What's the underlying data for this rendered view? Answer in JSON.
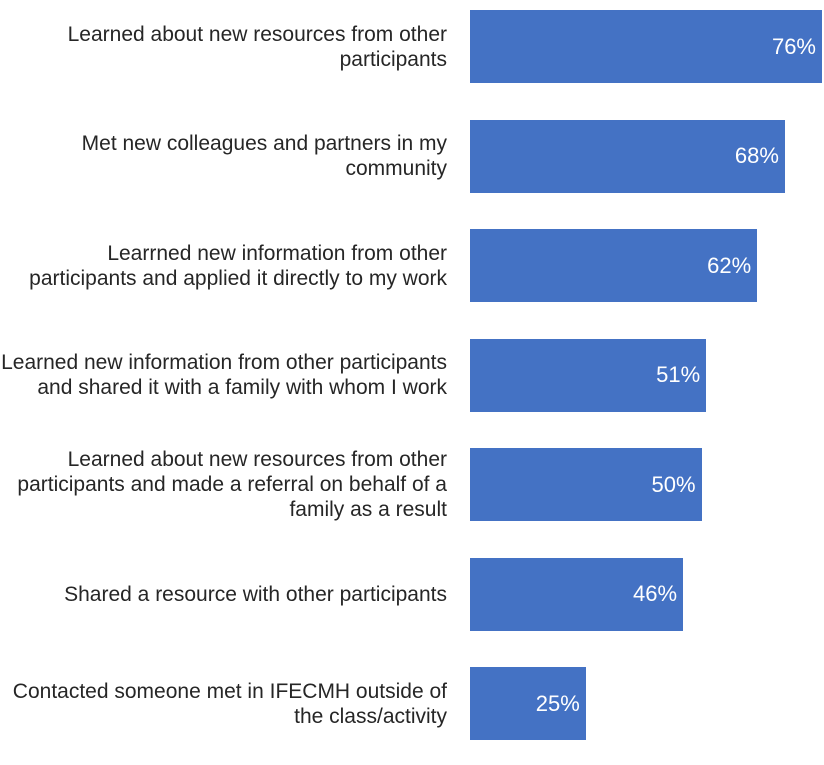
{
  "chart_data": {
    "type": "bar",
    "orientation": "horizontal",
    "categories": [
      "Learned about new resources from other participants",
      "Met new colleagues and partners in my community",
      "Learrned new information from other participants and applied it directly to my work",
      "Learned new information from other participants and shared it with a family with whom I work",
      "Learned about new resources from other participants and made a referral on behalf of a family as a result",
      "Shared a resource with other participants",
      "Contacted someone met in IFECMH outside of the class/activity"
    ],
    "values": [
      76,
      68,
      62,
      51,
      50,
      46,
      25
    ],
    "value_labels": [
      "76%",
      "68%",
      "62%",
      "51%",
      "50%",
      "46%",
      "25%"
    ],
    "color": "#4472c4"
  }
}
